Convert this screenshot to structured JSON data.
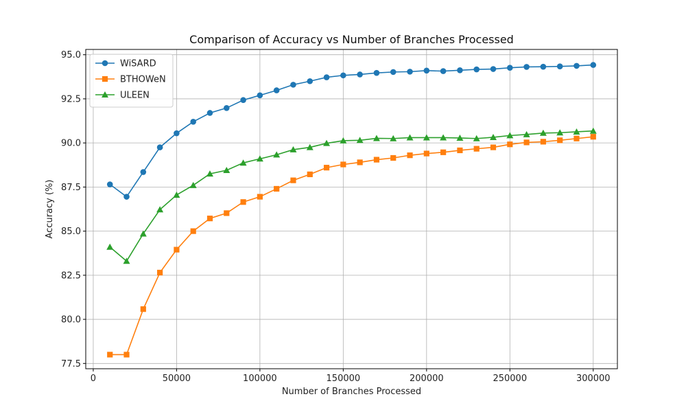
{
  "chart_data": {
    "type": "line",
    "title": "Comparison of Accuracy vs Number of Branches Processed",
    "xlabel": "Number of Branches Processed",
    "ylabel": "Accuracy (%)",
    "xlim": [
      -4500,
      314500
    ],
    "ylim": [
      77.2,
      95.3
    ],
    "xticks": [
      0,
      50000,
      100000,
      150000,
      200000,
      250000,
      300000
    ],
    "yticks": [
      77.5,
      80.0,
      82.5,
      85.0,
      87.5,
      90.0,
      92.5,
      95.0
    ],
    "grid": true,
    "legend_position": "top-left",
    "x": [
      10000,
      20000,
      30000,
      40000,
      50000,
      60000,
      70000,
      80000,
      90000,
      100000,
      110000,
      120000,
      130000,
      140000,
      150000,
      160000,
      170000,
      180000,
      190000,
      200000,
      210000,
      220000,
      230000,
      240000,
      250000,
      260000,
      270000,
      280000,
      290000,
      300000
    ],
    "series": [
      {
        "name": "WiSARD",
        "color": "#1f77b4",
        "marker": "circle",
        "values": [
          87.65,
          86.95,
          88.35,
          89.75,
          90.55,
          91.2,
          91.7,
          91.98,
          92.43,
          92.7,
          92.98,
          93.3,
          93.5,
          93.72,
          93.83,
          93.88,
          93.97,
          94.02,
          94.04,
          94.1,
          94.07,
          94.12,
          94.17,
          94.19,
          94.26,
          94.31,
          94.32,
          94.34,
          94.37,
          94.42
        ]
      },
      {
        "name": "BTHOWeN",
        "color": "#ff7f0e",
        "marker": "square",
        "values": [
          78.0,
          78.0,
          80.58,
          82.65,
          83.95,
          85.0,
          85.72,
          86.02,
          86.65,
          86.95,
          87.4,
          87.88,
          88.22,
          88.6,
          88.78,
          88.9,
          89.05,
          89.15,
          89.3,
          89.4,
          89.47,
          89.58,
          89.67,
          89.75,
          89.92,
          90.03,
          90.07,
          90.15,
          90.25,
          90.35
        ]
      },
      {
        "name": "ULEEN",
        "color": "#2ca02c",
        "marker": "triangle",
        "values": [
          84.1,
          83.3,
          84.85,
          86.22,
          87.05,
          87.6,
          88.25,
          88.45,
          88.87,
          89.1,
          89.33,
          89.62,
          89.75,
          89.98,
          90.13,
          90.15,
          90.26,
          90.25,
          90.3,
          90.3,
          90.3,
          90.28,
          90.25,
          90.32,
          90.42,
          90.48,
          90.56,
          90.58,
          90.63,
          90.68
        ]
      }
    ]
  }
}
